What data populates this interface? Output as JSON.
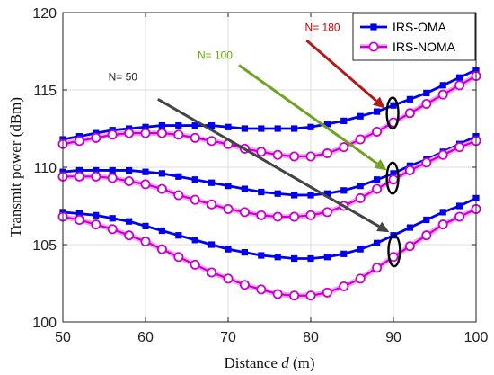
{
  "chart_data": {
    "type": "line",
    "title": "",
    "xlabel": "Distance d (m)",
    "xlabel_parts": [
      "Distance ",
      "d",
      " (m)"
    ],
    "ylabel": "Transmit power (dBm)",
    "xlim": [
      50,
      100
    ],
    "ylim": [
      100,
      120
    ],
    "xticks": [
      50,
      60,
      70,
      80,
      90,
      100
    ],
    "yticks": [
      100,
      105,
      110,
      115,
      120
    ],
    "grid": true,
    "legend_position": "top-right",
    "x": [
      50,
      52,
      54,
      56,
      58,
      60,
      62,
      64,
      66,
      68,
      70,
      72,
      74,
      76,
      78,
      80,
      82,
      84,
      86,
      88,
      90,
      92,
      94,
      96,
      98,
      100
    ],
    "legend": [
      {
        "name": "IRS-OMA",
        "color": "#0000ee",
        "marker": "square"
      },
      {
        "name": "IRS-NOMA",
        "color": "#cc00cc",
        "marker": "circle"
      }
    ],
    "series": [
      {
        "legend": "IRS-OMA",
        "color": "#0000ee",
        "marker": "square",
        "group": "N= 180",
        "values": [
          111.8,
          112.0,
          112.2,
          112.4,
          112.5,
          112.6,
          112.7,
          112.7,
          112.7,
          112.7,
          112.6,
          112.5,
          112.5,
          112.5,
          112.5,
          112.6,
          112.8,
          113.0,
          113.3,
          113.6,
          114.0,
          114.4,
          114.8,
          115.3,
          115.8,
          116.3
        ]
      },
      {
        "legend": "IRS-NOMA",
        "color": "#cc00cc",
        "marker": "circle",
        "group": "N= 180",
        "values": [
          111.5,
          111.7,
          111.9,
          112.1,
          112.2,
          112.2,
          112.2,
          112.1,
          111.9,
          111.7,
          111.5,
          111.2,
          111.0,
          110.8,
          110.7,
          110.7,
          110.9,
          111.3,
          111.8,
          112.3,
          112.9,
          113.5,
          114.1,
          114.7,
          115.3,
          115.9
        ]
      },
      {
        "legend": "IRS-OMA",
        "color": "#0000ee",
        "marker": "square",
        "group": "N= 100",
        "values": [
          109.7,
          109.8,
          109.8,
          109.8,
          109.8,
          109.7,
          109.6,
          109.4,
          109.2,
          109.0,
          108.8,
          108.6,
          108.4,
          108.3,
          108.2,
          108.2,
          108.3,
          108.5,
          108.8,
          109.2,
          109.6,
          110.1,
          110.5,
          111.0,
          111.5,
          112.0
        ]
      },
      {
        "legend": "IRS-NOMA",
        "color": "#cc00cc",
        "marker": "circle",
        "group": "N= 100",
        "values": [
          109.4,
          109.4,
          109.4,
          109.3,
          109.1,
          108.9,
          108.6,
          108.2,
          107.9,
          107.6,
          107.3,
          107.1,
          106.9,
          106.8,
          106.8,
          106.9,
          107.1,
          107.5,
          108.0,
          108.6,
          109.2,
          109.8,
          110.3,
          110.8,
          111.3,
          111.7
        ]
      },
      {
        "legend": "IRS-OMA",
        "color": "#0000ee",
        "marker": "square",
        "group": "N= 50",
        "values": [
          107.1,
          107.0,
          106.9,
          106.7,
          106.5,
          106.2,
          105.9,
          105.6,
          105.3,
          105.0,
          104.7,
          104.5,
          104.3,
          104.2,
          104.1,
          104.1,
          104.2,
          104.4,
          104.7,
          105.1,
          105.6,
          106.1,
          106.6,
          107.1,
          107.5,
          108.0
        ]
      },
      {
        "legend": "IRS-NOMA",
        "color": "#cc00cc",
        "marker": "circle",
        "group": "N= 50",
        "values": [
          106.8,
          106.6,
          106.3,
          106.0,
          105.6,
          105.2,
          104.7,
          104.2,
          103.7,
          103.2,
          102.8,
          102.4,
          102.1,
          101.8,
          101.7,
          101.7,
          101.9,
          102.3,
          102.8,
          103.5,
          104.2,
          104.9,
          105.6,
          106.3,
          106.8,
          107.3
        ]
      }
    ],
    "annotations": [
      {
        "text": "N= 180",
        "color": "#cc0000",
        "arrow_color": "#b31a1a",
        "from": [
          79.5,
          118.2
        ],
        "to": [
          89.0,
          113.8
        ],
        "text_at": [
          79.3,
          118.8
        ]
      },
      {
        "text": "N= 100",
        "color": "#66aa00",
        "arrow_color": "#6fa321",
        "from": [
          71.3,
          116.6
        ],
        "to": [
          89.2,
          109.8
        ],
        "text_at": [
          66.3,
          117.0
        ]
      },
      {
        "text": "N= 50",
        "color": "#222222",
        "arrow_color": "#444444",
        "from": [
          61.5,
          114.4
        ],
        "to": [
          89.5,
          105.8
        ],
        "text_at": [
          55.5,
          115.6
        ]
      }
    ],
    "ellipses": [
      {
        "cx": 89.9,
        "cy": 113.5,
        "rx": 0.7,
        "ry": 1.0
      },
      {
        "cx": 89.9,
        "cy": 109.3,
        "rx": 0.7,
        "ry": 1.0
      },
      {
        "cx": 90.1,
        "cy": 104.6,
        "rx": 0.7,
        "ry": 1.0
      }
    ]
  }
}
